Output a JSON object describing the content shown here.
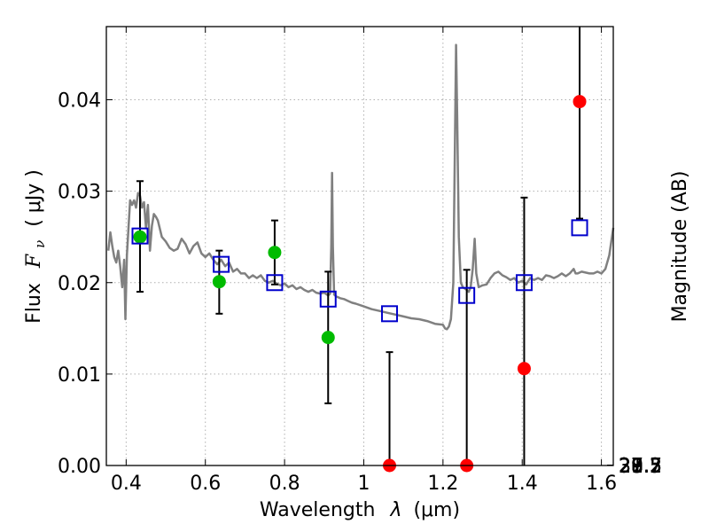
{
  "chart_data": {
    "type": "scatter",
    "xlabel": "Wavelength",
    "xlabel_symbol": "λ",
    "xlabel_unit": "(μm)",
    "ylabel": "Flux",
    "ylabel_symbol": "F",
    "ylabel_subscript": "ν",
    "ylabel_unit": "( μJy )",
    "y2label": "Magnitude (AB)",
    "xlim": [
      0.35,
      1.63
    ],
    "ylim": [
      0.0,
      0.048
    ],
    "grid": true,
    "xticks": [
      0.4,
      0.6,
      0.8,
      1.0,
      1.2,
      1.4,
      1.6
    ],
    "xtick_labels": [
      "0.4",
      "0.6",
      "0.8",
      "1",
      "1.2",
      "1.4",
      "1.6"
    ],
    "yticks": [
      0.0,
      0.01,
      0.02,
      0.03,
      0.04
    ],
    "ytick_labels": [
      "0.00",
      "0.01",
      "0.02",
      "0.03",
      "0.04"
    ],
    "y2_tick_labels": [
      "27.2",
      "27.3",
      "27.5",
      "27.7",
      "28",
      "28.2",
      "28.5",
      "29",
      "29.5",
      "30",
      "31"
    ],
    "colors": {
      "model": "#808080",
      "observed_detected": "#00bb00",
      "observed_upper": "#ff0000",
      "model_photometry": "#0000cc",
      "errorbar": "#000000",
      "grid": "#b0b0b0"
    },
    "series": [
      {
        "kind": "line",
        "points": [
          [
            0.355,
            0.0235
          ],
          [
            0.36,
            0.0255
          ],
          [
            0.365,
            0.024
          ],
          [
            0.37,
            0.0228
          ],
          [
            0.375,
            0.0222
          ],
          [
            0.38,
            0.0235
          ],
          [
            0.385,
            0.0218
          ],
          [
            0.39,
            0.0195
          ],
          [
            0.395,
            0.0225
          ],
          [
            0.398,
            0.016
          ],
          [
            0.402,
            0.023
          ],
          [
            0.41,
            0.029
          ],
          [
            0.415,
            0.0285
          ],
          [
            0.42,
            0.029
          ],
          [
            0.425,
            0.0282
          ],
          [
            0.43,
            0.0298
          ],
          [
            0.435,
            0.0295
          ],
          [
            0.44,
            0.0282
          ],
          [
            0.445,
            0.0288
          ],
          [
            0.45,
            0.026
          ],
          [
            0.455,
            0.0285
          ],
          [
            0.46,
            0.0235
          ],
          [
            0.465,
            0.0262
          ],
          [
            0.47,
            0.0275
          ],
          [
            0.475,
            0.0272
          ],
          [
            0.48,
            0.0268
          ],
          [
            0.49,
            0.025
          ],
          [
            0.5,
            0.0245
          ],
          [
            0.51,
            0.0238
          ],
          [
            0.52,
            0.0235
          ],
          [
            0.53,
            0.0237
          ],
          [
            0.54,
            0.0248
          ],
          [
            0.55,
            0.0242
          ],
          [
            0.56,
            0.0232
          ],
          [
            0.57,
            0.024
          ],
          [
            0.58,
            0.0244
          ],
          [
            0.59,
            0.0232
          ],
          [
            0.6,
            0.0228
          ],
          [
            0.61,
            0.0232
          ],
          [
            0.62,
            0.0225
          ],
          [
            0.63,
            0.022
          ],
          [
            0.64,
            0.0225
          ],
          [
            0.65,
            0.0218
          ],
          [
            0.66,
            0.0222
          ],
          [
            0.67,
            0.0212
          ],
          [
            0.68,
            0.0215
          ],
          [
            0.69,
            0.021
          ],
          [
            0.7,
            0.021
          ],
          [
            0.71,
            0.0205
          ],
          [
            0.72,
            0.0208
          ],
          [
            0.73,
            0.0205
          ],
          [
            0.74,
            0.0208
          ],
          [
            0.75,
            0.0202
          ],
          [
            0.76,
            0.02
          ],
          [
            0.77,
            0.0202
          ],
          [
            0.78,
            0.0199
          ],
          [
            0.79,
            0.0197
          ],
          [
            0.8,
            0.0199
          ],
          [
            0.81,
            0.0195
          ],
          [
            0.82,
            0.0197
          ],
          [
            0.83,
            0.0193
          ],
          [
            0.84,
            0.0195
          ],
          [
            0.85,
            0.0192
          ],
          [
            0.86,
            0.019
          ],
          [
            0.87,
            0.0192
          ],
          [
            0.88,
            0.0189
          ],
          [
            0.89,
            0.0188
          ],
          [
            0.9,
            0.0189
          ],
          [
            0.91,
            0.0186
          ],
          [
            0.915,
            0.0188
          ],
          [
            0.918,
            0.024
          ],
          [
            0.92,
            0.032
          ],
          [
            0.922,
            0.024
          ],
          [
            0.925,
            0.0187
          ],
          [
            0.93,
            0.0185
          ],
          [
            0.94,
            0.0183
          ],
          [
            0.95,
            0.0182
          ],
          [
            0.96,
            0.018
          ],
          [
            0.97,
            0.0178
          ],
          [
            0.98,
            0.0177
          ],
          [
            1.0,
            0.0174
          ],
          [
            1.02,
            0.0171
          ],
          [
            1.04,
            0.0169
          ],
          [
            1.06,
            0.0167
          ],
          [
            1.08,
            0.0165
          ],
          [
            1.1,
            0.0163
          ],
          [
            1.12,
            0.0161
          ],
          [
            1.14,
            0.016
          ],
          [
            1.16,
            0.0158
          ],
          [
            1.18,
            0.0155
          ],
          [
            1.2,
            0.0154
          ],
          [
            1.205,
            0.015
          ],
          [
            1.21,
            0.0149
          ],
          [
            1.215,
            0.0152
          ],
          [
            1.22,
            0.016
          ],
          [
            1.226,
            0.02
          ],
          [
            1.23,
            0.035
          ],
          [
            1.233,
            0.046
          ],
          [
            1.236,
            0.038
          ],
          [
            1.24,
            0.025
          ],
          [
            1.245,
            0.02
          ],
          [
            1.25,
            0.0195
          ],
          [
            1.26,
            0.0192
          ],
          [
            1.265,
            0.019
          ],
          [
            1.27,
            0.0195
          ],
          [
            1.275,
            0.0215
          ],
          [
            1.28,
            0.0248
          ],
          [
            1.284,
            0.021
          ],
          [
            1.29,
            0.0195
          ],
          [
            1.3,
            0.0197
          ],
          [
            1.31,
            0.0198
          ],
          [
            1.32,
            0.0205
          ],
          [
            1.33,
            0.021
          ],
          [
            1.34,
            0.0212
          ],
          [
            1.35,
            0.0208
          ],
          [
            1.36,
            0.0206
          ],
          [
            1.37,
            0.0203
          ],
          [
            1.38,
            0.0205
          ],
          [
            1.39,
            0.02
          ],
          [
            1.4,
            0.0202
          ],
          [
            1.41,
            0.0198
          ],
          [
            1.42,
            0.0205
          ],
          [
            1.43,
            0.0203
          ],
          [
            1.44,
            0.0205
          ],
          [
            1.45,
            0.0203
          ],
          [
            1.46,
            0.0208
          ],
          [
            1.47,
            0.0207
          ],
          [
            1.48,
            0.0205
          ],
          [
            1.49,
            0.0207
          ],
          [
            1.5,
            0.021
          ],
          [
            1.51,
            0.0207
          ],
          [
            1.52,
            0.021
          ],
          [
            1.53,
            0.0215
          ],
          [
            1.535,
            0.021
          ],
          [
            1.54,
            0.021
          ],
          [
            1.55,
            0.0212
          ],
          [
            1.56,
            0.0211
          ],
          [
            1.57,
            0.021
          ],
          [
            1.58,
            0.021
          ],
          [
            1.59,
            0.0212
          ],
          [
            1.6,
            0.021
          ],
          [
            1.61,
            0.0215
          ],
          [
            1.62,
            0.023
          ],
          [
            1.63,
            0.026
          ]
        ]
      },
      {
        "kind": "detections",
        "points": [
          {
            "x": 0.435,
            "y": 0.025,
            "yerr_low": 0.019,
            "yerr_high": 0.0311
          },
          {
            "x": 0.635,
            "y": 0.0201,
            "yerr_low": 0.0166,
            "yerr_high": 0.0235
          },
          {
            "x": 0.775,
            "y": 0.0233,
            "yerr_low": 0.0198,
            "yerr_high": 0.0268
          },
          {
            "x": 0.91,
            "y": 0.014,
            "yerr_low": 0.0068,
            "yerr_high": 0.0212
          }
        ]
      },
      {
        "kind": "upper_limits",
        "points": [
          {
            "x": 1.065,
            "y": 0.0,
            "yerr_low": 0.0,
            "yerr_high": 0.0124
          },
          {
            "x": 1.26,
            "y": 0.0,
            "yerr_low": 0.0,
            "yerr_high": 0.0214
          },
          {
            "x": 1.405,
            "y": 0.0106,
            "yerr_low": 0.0,
            "yerr_high": 0.0293
          },
          {
            "x": 1.545,
            "y": 0.0398,
            "yerr_low": 0.027,
            "yerr_high": 0.048
          }
        ]
      },
      {
        "kind": "model_photometry",
        "points": [
          {
            "x": 0.435,
            "y": 0.0251
          },
          {
            "x": 0.64,
            "y": 0.022
          },
          {
            "x": 0.775,
            "y": 0.02
          },
          {
            "x": 0.91,
            "y": 0.0182
          },
          {
            "x": 1.065,
            "y": 0.0166
          },
          {
            "x": 1.26,
            "y": 0.0186
          },
          {
            "x": 1.405,
            "y": 0.02
          },
          {
            "x": 1.545,
            "y": 0.026
          }
        ]
      }
    ]
  }
}
